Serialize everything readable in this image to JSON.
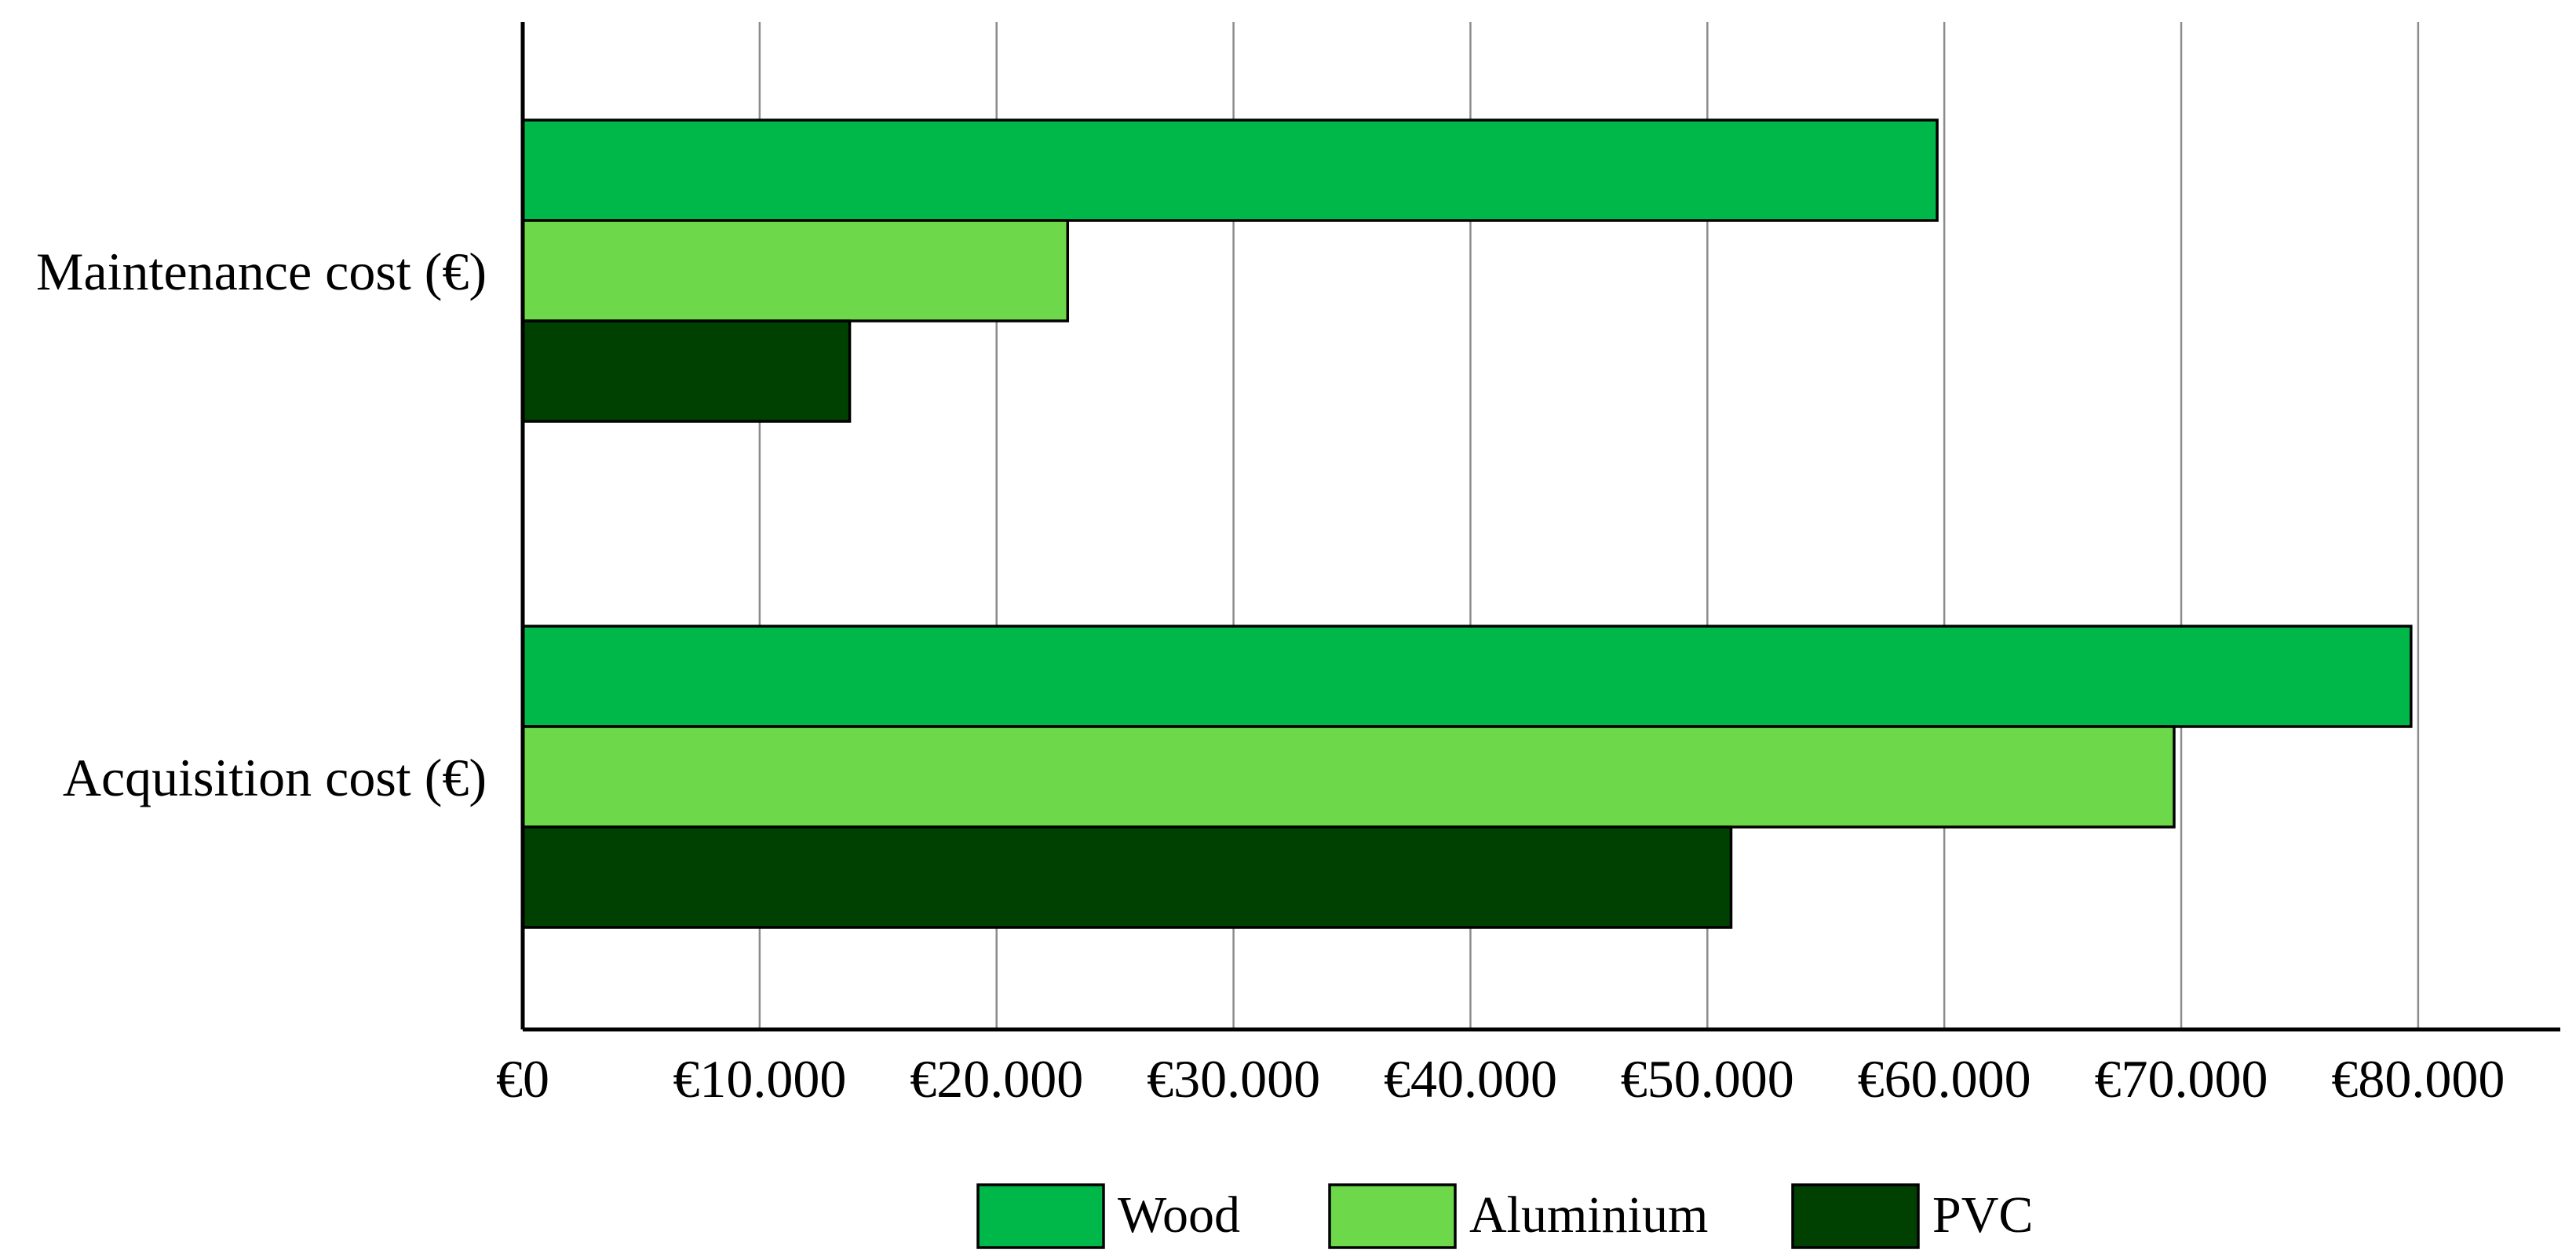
{
  "chart_data": {
    "type": "bar",
    "orientation": "horizontal",
    "categories": [
      "Maintenance cost (€)",
      "Acquisition cost (€)"
    ],
    "series": [
      {
        "name": "Wood",
        "color": "#00B84A",
        "values": [
          59700,
          79700
        ]
      },
      {
        "name": "Aluminium",
        "color": "#6DD84A",
        "values": [
          23000,
          69700
        ]
      },
      {
        "name": "PVC",
        "color": "#004000",
        "values": [
          13800,
          51000
        ]
      }
    ],
    "xlim": [
      0,
      86000
    ],
    "x_ticks": [
      0,
      10000,
      20000,
      30000,
      40000,
      50000,
      60000,
      70000,
      80000
    ],
    "x_tick_labels": [
      "€0",
      "€10.000",
      "€20.000",
      "€30.000",
      "€40.000",
      "€50.000",
      "€60.000",
      "€70.000",
      "€80.000"
    ],
    "grid": "vertical",
    "legend": "bottom",
    "title": "",
    "xlabel": "",
    "ylabel": ""
  }
}
